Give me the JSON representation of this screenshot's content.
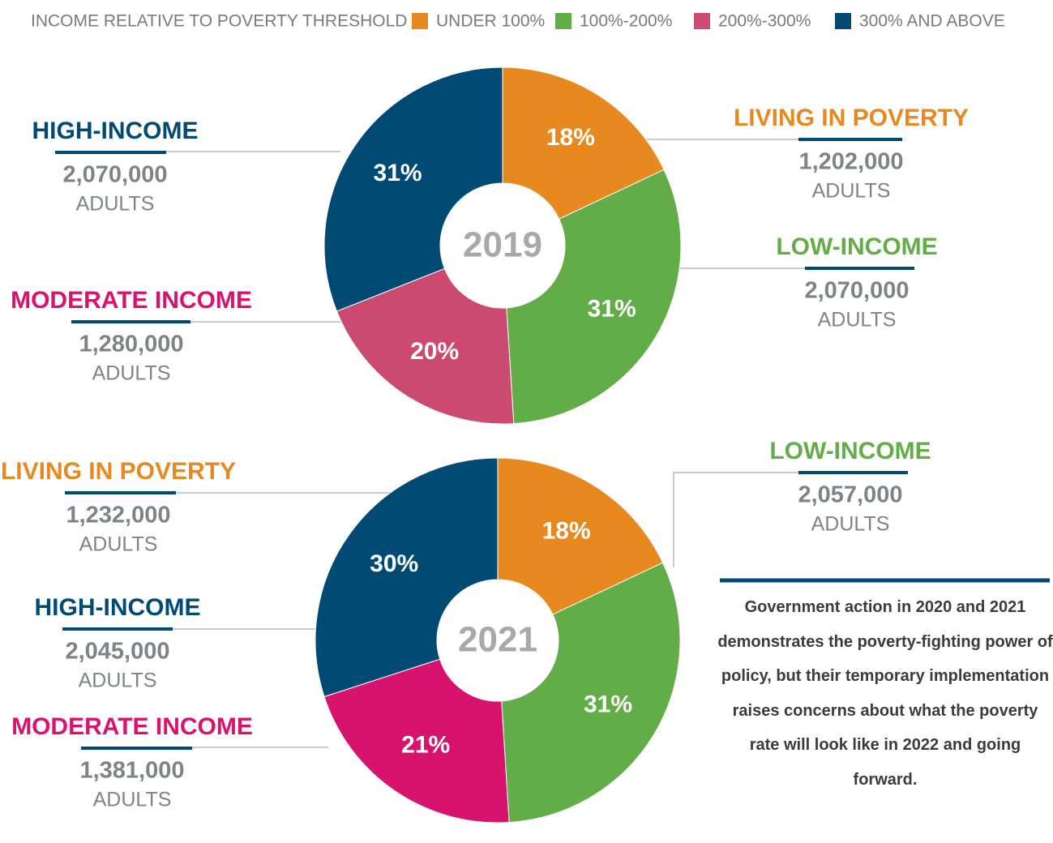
{
  "legend": {
    "title": "INCOME RELATIVE TO POVERTY THRESHOLD",
    "items": [
      "UNDER 100%",
      "100%-200%",
      "200%-300%",
      "300% AND ABOVE"
    ],
    "colors": [
      "#e8891f",
      "#62ad47",
      "#d14a74",
      "#004a73"
    ]
  },
  "chart_data": [
    {
      "type": "pie",
      "center_label": "2019",
      "values": [
        18,
        31,
        20,
        31
      ],
      "value_labels": [
        "18%",
        "31%",
        "20%",
        "31%"
      ],
      "colors": [
        "#e8891f",
        "#62ad47",
        "#cc4a70",
        "#004a73"
      ],
      "annotations": [
        {
          "title": "LIVING IN POVERTY",
          "count": "1,202,000",
          "unit": "ADULTS",
          "color": "#e8891f"
        },
        {
          "title": "LOW-INCOME",
          "count": "2,070,000",
          "unit": "ADULTS",
          "color": "#62ad47"
        },
        {
          "title": "MODERATE INCOME",
          "count": "1,280,000",
          "unit": "ADULTS",
          "color": "#d8136d"
        },
        {
          "title": "HIGH-INCOME",
          "count": "2,070,000",
          "unit": "ADULTS",
          "color": "#004a73"
        }
      ]
    },
    {
      "type": "pie",
      "center_label": "2021",
      "values": [
        18,
        31,
        21,
        30
      ],
      "value_labels": [
        "18%",
        "31%",
        "21%",
        "30%"
      ],
      "colors": [
        "#e8891f",
        "#62ad47",
        "#d8136d",
        "#004a73"
      ],
      "annotations": [
        {
          "title": "LIVING IN POVERTY",
          "count": "1,232,000",
          "unit": "ADULTS",
          "color": "#e8891f"
        },
        {
          "title": "LOW-INCOME",
          "count": "2,057,000",
          "unit": "ADULTS",
          "color": "#62ad47"
        },
        {
          "title": "MODERATE INCOME",
          "count": "1,381,000",
          "unit": "ADULTS",
          "color": "#d8136d"
        },
        {
          "title": "HIGH-INCOME",
          "count": "2,045,000",
          "unit": "ADULTS",
          "color": "#004a73"
        }
      ]
    }
  ],
  "note": "Government action in 2020 and 2021 demonstrates the poverty-fighting power of policy, but their temporary implementation raises concerns about what the poverty rate will look like in 2022 and going forward."
}
